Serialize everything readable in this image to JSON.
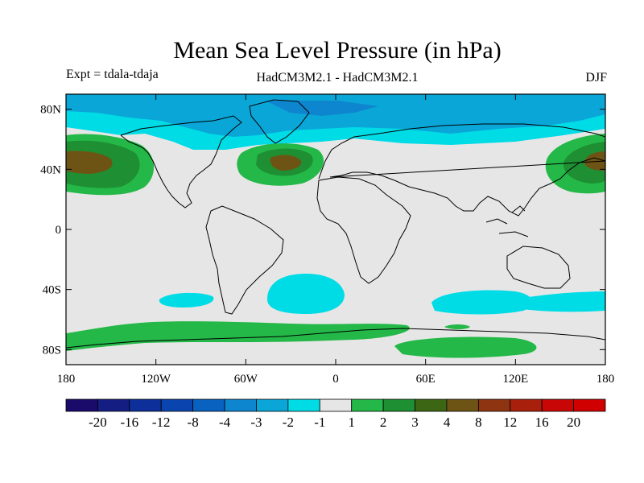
{
  "title": "Mean Sea Level Pressure (in hPa)",
  "subtitle_left": "Expt = tdala-tdaja",
  "subtitle_center": "HadCM3M2.1 - HadCM3M2.1",
  "subtitle_right": "DJF",
  "map": {
    "lon_range": [
      -180,
      180
    ],
    "lat_range": [
      -90,
      90
    ],
    "lon_ticks": [
      {
        "value": -180,
        "label": "180"
      },
      {
        "value": -120,
        "label": "120W"
      },
      {
        "value": -60,
        "label": "60W"
      },
      {
        "value": 0,
        "label": "0"
      },
      {
        "value": 60,
        "label": "60E"
      },
      {
        "value": 120,
        "label": "120E"
      },
      {
        "value": 180,
        "label": "180"
      }
    ],
    "lat_ticks": [
      {
        "value": 80,
        "label": "80N"
      },
      {
        "value": 40,
        "label": "40N"
      },
      {
        "value": 0,
        "label": "0"
      },
      {
        "value": -40,
        "label": "40S"
      },
      {
        "value": -80,
        "label": "80S"
      }
    ],
    "background_color": "#e6e6e6"
  },
  "colorbar": {
    "labels": [
      "-20",
      "-16",
      "-12",
      "-8",
      "-4",
      "-3",
      "-2",
      "-1",
      "1",
      "2",
      "3",
      "4",
      "8",
      "12",
      "16",
      "20"
    ],
    "colors": [
      "#1a0a6a",
      "#141e82",
      "#0c2f9a",
      "#0a44ae",
      "#0a62c0",
      "#0e86cf",
      "#0aa6d8",
      "#00dce6",
      "#e6e6e6",
      "#23b847",
      "#1e8f32",
      "#3c6614",
      "#6e5414",
      "#8e3410",
      "#a8200c",
      "#c80606",
      "#d00000"
    ]
  }
}
